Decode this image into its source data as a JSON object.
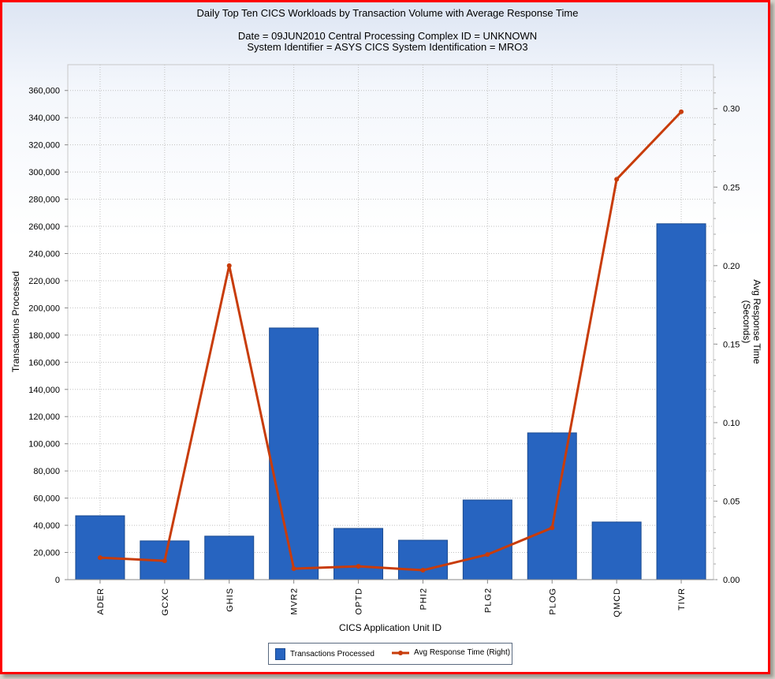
{
  "chart_data": {
    "type": "bar+line",
    "title": "Daily Top Ten CICS Workloads by Transaction Volume with Average Response Time",
    "subtitle_lines": [
      "Date = 09JUN2010  Central Processing Complex ID = UNKNOWN",
      "System Identifier = ASYS  CICS System Identification = MRO3"
    ],
    "xlabel": "CICS Application Unit ID",
    "ylabel": "Transactions Processed",
    "y2label_lines": [
      "Avg Response Time",
      "(Seconds)"
    ],
    "categories": [
      "ADER",
      "GCXC",
      "GHIS",
      "MVR2",
      "OPTD",
      "PHI2",
      "PLG2",
      "PLOG",
      "QMCD",
      "TIVR"
    ],
    "ylim": [
      0,
      379000
    ],
    "y2lim": [
      0,
      0.328
    ],
    "yticks": [
      "0",
      "20,000",
      "40,000",
      "60,000",
      "80,000",
      "100,000",
      "120,000",
      "140,000",
      "160,000",
      "180,000",
      "200,000",
      "220,000",
      "240,000",
      "260,000",
      "280,000",
      "300,000",
      "320,000",
      "340,000",
      "360,000"
    ],
    "y2ticks": [
      "0.00",
      "0.05",
      "0.10",
      "0.15",
      "0.20",
      "0.25",
      "0.30"
    ],
    "grid": true,
    "legend_position": "bottom",
    "series": [
      {
        "name": "Transactions Processed",
        "type": "bar",
        "axis": "left",
        "color": "#2764c0",
        "values": [
          47000,
          28500,
          32000,
          185200,
          37700,
          29000,
          58600,
          108000,
          42400,
          261900
        ]
      },
      {
        "name": "Avg Response Time (Right)",
        "type": "line",
        "axis": "right",
        "color": "#c83c0a",
        "values": [
          0.014,
          0.012,
          0.2,
          0.007,
          0.0085,
          0.006,
          0.016,
          0.033,
          0.255,
          0.298
        ]
      }
    ]
  }
}
